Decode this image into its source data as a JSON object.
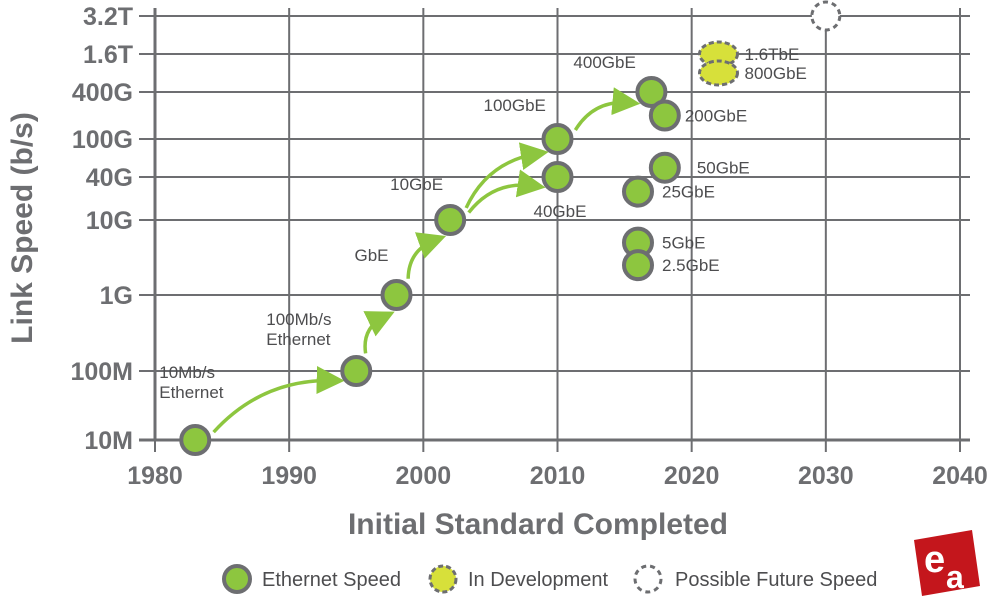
{
  "chart_data": {
    "type": "scatter",
    "xlabel": "Initial Standard Completed",
    "ylabel": "Link Speed (b/s)",
    "xlim": [
      1980,
      2040
    ],
    "x_ticks": [
      1980,
      1990,
      2000,
      2010,
      2020,
      2030,
      2040
    ],
    "y_scale": "log",
    "y_ticks": [
      {
        "label": "10M",
        "value": 10000000.0
      },
      {
        "label": "100M",
        "value": 100000000.0
      },
      {
        "label": "1G",
        "value": 1000000000.0
      },
      {
        "label": "10G",
        "value": 10000000000.0
      },
      {
        "label": "40G",
        "value": 40000000000.0
      },
      {
        "label": "100G",
        "value": 100000000000.0
      },
      {
        "label": "400G",
        "value": 400000000000.0
      },
      {
        "label": "1.6T",
        "value": 1600000000000.0
      },
      {
        "label": "3.2T",
        "value": 3200000000000.0
      }
    ],
    "grid": true,
    "series": [
      {
        "name": "Ethernet Speed",
        "color": "#8dc63f",
        "edge": "#6d6e71",
        "style": "filled",
        "points": [
          {
            "label": "10Mb/s\nEthernet",
            "x": 1983,
            "y": 10000000.0
          },
          {
            "label": "100Mb/s\nEthernet",
            "x": 1995,
            "y": 100000000.0
          },
          {
            "label": "GbE",
            "x": 1998,
            "y": 1000000000.0
          },
          {
            "label": "10GbE",
            "x": 2002,
            "y": 10000000000.0
          },
          {
            "label": "40GbE",
            "x": 2010,
            "y": 40000000000.0
          },
          {
            "label": "100GbE",
            "x": 2010,
            "y": 100000000000.0
          },
          {
            "label": "400GbE",
            "x": 2017,
            "y": 400000000000.0
          },
          {
            "label": "200GbE",
            "x": 2018,
            "y": 200000000000.0
          },
          {
            "label": "50GbE",
            "x": 2018,
            "y": 50000000000.0
          },
          {
            "label": "25GbE",
            "x": 2016,
            "y": 25000000000.0
          },
          {
            "label": "5GbE",
            "x": 2016,
            "y": 5000000000.0
          },
          {
            "label": "2.5GbE",
            "x": 2016,
            "y": 2500000000.0
          }
        ]
      },
      {
        "name": "In Development",
        "color": "#d7e03a",
        "edge": "#6d6e71",
        "style": "dashed-filled",
        "points": [
          {
            "label": "1.6TbE",
            "x": 2022,
            "y": 1600000000000.0
          },
          {
            "label": "800GbE",
            "x": 2022,
            "y": 800000000000.0
          }
        ]
      },
      {
        "name": "Possible Future Speed",
        "color": "#ffffff",
        "edge": "#6d6e71",
        "style": "dashed-empty",
        "points": [
          {
            "label": "",
            "x": 2030,
            "y": 3200000000000.0
          }
        ]
      }
    ],
    "trend_arrows": [
      {
        "from": "10Mb/s\nEthernet",
        "to": "100Mb/s\nEthernet"
      },
      {
        "from": "100Mb/s\nEthernet",
        "to": "GbE"
      },
      {
        "from": "GbE",
        "to": "10GbE"
      },
      {
        "from": "10GbE",
        "to": "100GbE"
      },
      {
        "from": "10GbE",
        "to": "40GbE"
      },
      {
        "from": "100GbE",
        "to": "400GbE"
      }
    ],
    "legend_position": "bottom"
  }
}
